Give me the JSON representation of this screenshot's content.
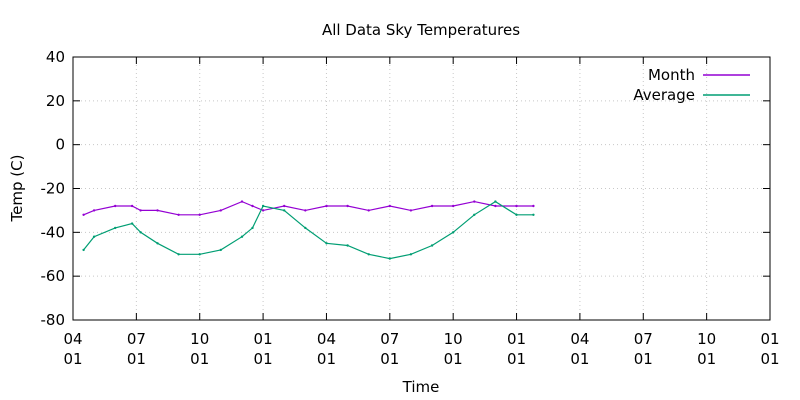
{
  "chart_data": {
    "type": "line",
    "title": "All Data Sky Temperatures",
    "xlabel": "Time",
    "ylabel": "Temp (C)",
    "ylim": [
      -80,
      40
    ],
    "yticks": [
      -80,
      -60,
      -40,
      -20,
      0,
      20,
      40
    ],
    "xticks": [
      {
        "top": "04",
        "bottom": "01"
      },
      {
        "top": "07",
        "bottom": "01"
      },
      {
        "top": "10",
        "bottom": "01"
      },
      {
        "top": "01",
        "bottom": "01"
      },
      {
        "top": "04",
        "bottom": "01"
      },
      {
        "top": "07",
        "bottom": "01"
      },
      {
        "top": "10",
        "bottom": "01"
      },
      {
        "top": "01",
        "bottom": "01"
      },
      {
        "top": "04",
        "bottom": "01"
      },
      {
        "top": "07",
        "bottom": "01"
      },
      {
        "top": "10",
        "bottom": "01"
      },
      {
        "top": "01",
        "bottom": "01"
      }
    ],
    "grid": true,
    "legend_position": "top-right",
    "series": [
      {
        "name": "Month",
        "color": "#9400d3",
        "x": [
          0.5,
          1.0,
          2.0,
          2.8,
          3.2,
          4.0,
          5.0,
          6.0,
          7.0,
          8.0,
          8.5,
          9.0,
          10.0,
          11.0,
          12.0,
          13.0,
          14.0,
          15.0,
          16.0,
          17.0,
          18.0,
          19.0,
          20.0,
          21.0,
          21.8
        ],
        "y": [
          -32,
          -30,
          -28,
          -28,
          -30,
          -30,
          -32,
          -32,
          -30,
          -26,
          -28,
          -30,
          -28,
          -30,
          -28,
          -28,
          -30,
          -28,
          -30,
          -28,
          -28,
          -26,
          -28,
          -28,
          -28
        ]
      },
      {
        "name": "Average",
        "color": "#009e73",
        "x": [
          0.5,
          1.0,
          2.0,
          2.8,
          3.2,
          4.0,
          5.0,
          6.0,
          7.0,
          8.0,
          8.5,
          9.0,
          10.0,
          11.0,
          12.0,
          13.0,
          14.0,
          15.0,
          16.0,
          17.0,
          18.0,
          19.0,
          20.0,
          21.0,
          21.8
        ],
        "y": [
          -48,
          -42,
          -38,
          -36,
          -40,
          -45,
          -50,
          -50,
          -48,
          -42,
          -38,
          -28,
          -30,
          -38,
          -45,
          -46,
          -50,
          -52,
          -50,
          -46,
          -40,
          -32,
          -26,
          -32,
          -32
        ]
      }
    ]
  }
}
